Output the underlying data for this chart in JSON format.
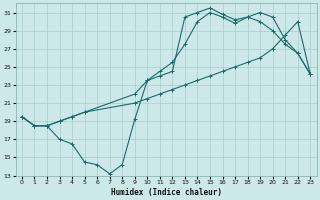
{
  "xlabel": "Humidex (Indice chaleur)",
  "background_color": "#cce8e8",
  "grid_color": "#aacccc",
  "line_color": "#1a6b6b",
  "xlim": [
    -0.5,
    23.5
  ],
  "ylim": [
    13,
    32
  ],
  "xticks": [
    0,
    1,
    2,
    3,
    4,
    5,
    6,
    7,
    8,
    9,
    10,
    11,
    12,
    13,
    14,
    15,
    16,
    17,
    18,
    19,
    20,
    21,
    22,
    23
  ],
  "yticks": [
    13,
    15,
    17,
    19,
    21,
    23,
    25,
    27,
    29,
    31
  ],
  "line1_x": [
    0,
    1,
    2,
    3,
    4,
    5,
    6,
    7,
    8,
    9,
    10,
    11,
    12,
    13,
    14,
    15,
    16,
    17,
    18,
    19,
    20,
    21,
    22,
    23
  ],
  "line1_y": [
    19.5,
    18.5,
    18.5,
    17.0,
    16.5,
    14.5,
    14.2,
    13.2,
    14.2,
    19.2,
    23.5,
    24.0,
    24.5,
    30.5,
    31.0,
    31.5,
    30.8,
    30.2,
    30.5,
    30.0,
    29.0,
    27.5,
    26.5,
    24.2
  ],
  "line2_x": [
    0,
    1,
    2,
    3,
    4,
    5,
    9,
    10,
    11,
    12,
    13,
    14,
    15,
    16,
    17,
    18,
    19,
    20,
    21,
    22,
    23
  ],
  "line2_y": [
    19.5,
    18.5,
    18.5,
    19.0,
    19.5,
    20.0,
    21.0,
    21.5,
    22.0,
    22.5,
    23.0,
    23.5,
    24.0,
    24.5,
    25.0,
    25.5,
    26.0,
    27.0,
    28.5,
    30.0,
    24.2
  ],
  "line3_x": [
    0,
    1,
    2,
    3,
    4,
    5,
    9,
    10,
    11,
    12,
    13,
    14,
    15,
    16,
    17,
    18,
    19,
    20,
    21,
    22,
    23
  ],
  "line3_y": [
    19.5,
    18.5,
    18.5,
    19.0,
    19.5,
    20.0,
    22.0,
    23.5,
    24.5,
    25.5,
    27.5,
    30.0,
    31.0,
    30.5,
    29.8,
    30.5,
    31.0,
    30.5,
    28.0,
    26.5,
    24.2
  ]
}
